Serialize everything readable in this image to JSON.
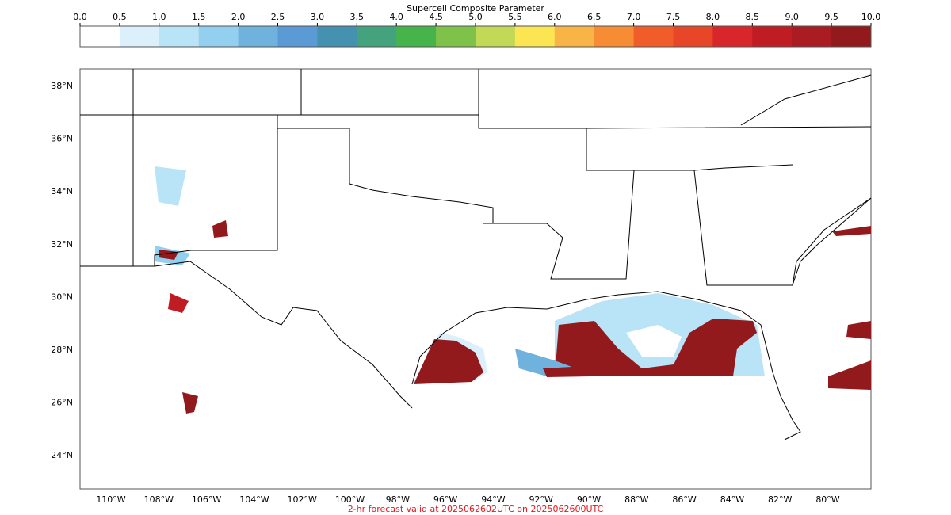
{
  "colorbar": {
    "title": "Supercell Composite Parameter",
    "ticks": [
      "0.0",
      "0.5",
      "1.0",
      "1.5",
      "2.0",
      "2.5",
      "3.0",
      "3.5",
      "4.0",
      "4.5",
      "5.0",
      "5.5",
      "6.0",
      "6.5",
      "7.0",
      "7.5",
      "8.0",
      "8.5",
      "9.0",
      "9.5",
      "10.0"
    ],
    "colors": [
      "#ffffff",
      "#dcf0fb",
      "#b9e4f7",
      "#93d0f0",
      "#6fb2de",
      "#5b9bd5",
      "#4591b0",
      "#44a37d",
      "#47b34b",
      "#7fc24a",
      "#c2d957",
      "#fbe553",
      "#f9b447",
      "#f68c33",
      "#f15d2a",
      "#e74628",
      "#d8262a",
      "#c01c24",
      "#a91c22",
      "#921a1d"
    ]
  },
  "map": {
    "lat_labels": [
      "38°N",
      "36°N",
      "34°N",
      "32°N",
      "30°N",
      "28°N",
      "26°N",
      "24°N"
    ],
    "lon_labels": [
      "110°W",
      "108°W",
      "106°W",
      "104°W",
      "102°W",
      "100°W",
      "98°W",
      "96°W",
      "94°W",
      "92°W",
      "90°W",
      "88°W",
      "86°W",
      "84°W",
      "82°W",
      "80°W"
    ]
  },
  "footer": "2-hr forecast valid at 2025062602UTC on 2025062600UTC"
}
